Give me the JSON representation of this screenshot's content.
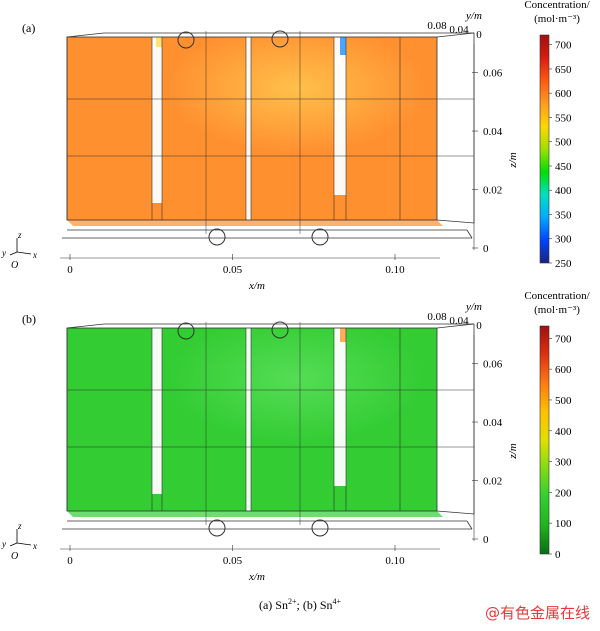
{
  "chart_data": [
    {
      "type": "heatmap",
      "panel_label": "(a)",
      "species": "Sn2+",
      "colorbar": {
        "title": "Concentration/",
        "unit": "(mol·m⁻³)",
        "range": [
          250,
          720
        ],
        "ticks": [
          250,
          300,
          350,
          400,
          450,
          500,
          550,
          600,
          650,
          700
        ],
        "colors": [
          "#1a237e",
          "#0044ff",
          "#00aaff",
          "#00e0c0",
          "#00e000",
          "#a0e000",
          "#ffd700",
          "#ff9a1e",
          "#ff5a10",
          "#dd1a10",
          "#a01010"
        ]
      },
      "field_fill": "#ff9030",
      "field_fill_light": "#ffc04a",
      "dominant_value": 650,
      "axes": {
        "x": {
          "label": "x/m",
          "ticks": [
            0,
            0.05,
            0.1
          ],
          "tick_labels": [
            "0",
            "0.05",
            "0.10"
          ]
        },
        "y": {
          "label": "y/m",
          "ticks": [
            0.08,
            0.04,
            0
          ],
          "tick_labels": [
            "0.08",
            "0.04",
            "0"
          ]
        },
        "z": {
          "label": "z/m",
          "ticks": [
            0,
            0.02,
            0.04,
            0.06
          ],
          "tick_labels": [
            "0",
            "0.02",
            "0.04",
            "0.06"
          ]
        }
      },
      "triad": {
        "y": "y",
        "z": "z",
        "o": "O",
        "x": "x"
      }
    },
    {
      "type": "heatmap",
      "panel_label": "(b)",
      "species": "Sn4+",
      "colorbar": {
        "title": "Concentration/",
        "unit": "(mol·m⁻³)",
        "range": [
          0,
          740
        ],
        "ticks": [
          0,
          100,
          200,
          300,
          400,
          500,
          600,
          700
        ],
        "colors": [
          "#0a6e14",
          "#1eb41e",
          "#30d030",
          "#80dc10",
          "#e0e000",
          "#ffc000",
          "#ff7a10",
          "#e03010",
          "#a01010"
        ]
      },
      "field_fill": "#33cc33",
      "field_fill_light": "#55dd55",
      "dominant_value": 190,
      "axes": {
        "x": {
          "label": "x/m",
          "ticks": [
            0,
            0.05,
            0.1
          ],
          "tick_labels": [
            "0",
            "0.05",
            "0.10"
          ]
        },
        "y": {
          "label": "y/m",
          "ticks": [
            0.08,
            0.04,
            0
          ],
          "tick_labels": [
            "0.08",
            "0.04",
            "0"
          ]
        },
        "z": {
          "label": "z/m",
          "ticks": [
            0,
            0.02,
            0.04,
            0.06
          ],
          "tick_labels": [
            "0",
            "0.02",
            "0.04",
            "0.06"
          ]
        }
      },
      "triad": {
        "y": "y",
        "z": "z",
        "o": "O",
        "x": "x"
      }
    }
  ],
  "caption": {
    "text_a": "(a) Sn",
    "sup_a": "2+",
    "mid": "; (b) Sn",
    "sup_b": "4+"
  },
  "watermark": "@有色金属在线"
}
